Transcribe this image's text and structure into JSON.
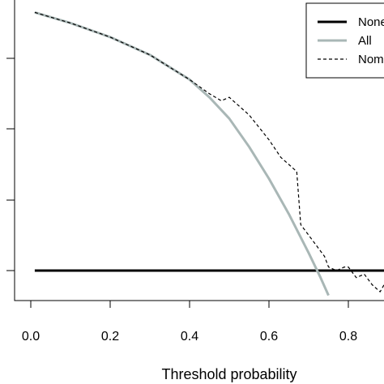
{
  "chart_data": {
    "type": "line",
    "xlabel": "Threshold probability",
    "ylabel": "",
    "x_ticks": [
      "0.0",
      "0.2",
      "0.4",
      "0.6",
      "0.8"
    ],
    "xlim": [
      0.0,
      0.89
    ],
    "ylim": [
      -0.07,
      0.74
    ],
    "grid": false,
    "legend_position": "top-right",
    "series": [
      {
        "name": "None",
        "color": "#000000",
        "style": "solid",
        "x": [
          0.01,
          0.89
        ],
        "y": [
          0.0,
          0.0
        ]
      },
      {
        "name": "All",
        "color": "#a9b7b6",
        "style": "solid",
        "x": [
          0.01,
          0.1,
          0.2,
          0.3,
          0.4,
          0.45,
          0.5,
          0.55,
          0.6,
          0.65,
          0.7,
          0.73,
          0.75
        ],
        "y": [
          0.73,
          0.7,
          0.66,
          0.61,
          0.54,
          0.49,
          0.43,
          0.35,
          0.26,
          0.16,
          0.05,
          -0.02,
          -0.07
        ]
      },
      {
        "name": "Nomogram",
        "color": "#000000",
        "style": "dashed",
        "x": [
          0.01,
          0.1,
          0.2,
          0.3,
          0.4,
          0.45,
          0.48,
          0.5,
          0.55,
          0.6,
          0.63,
          0.65,
          0.67,
          0.68,
          0.7,
          0.72,
          0.74,
          0.75,
          0.77,
          0.79,
          0.8,
          0.82,
          0.84,
          0.86,
          0.88,
          0.89
        ],
        "y": [
          0.73,
          0.7,
          0.66,
          0.61,
          0.54,
          0.5,
          0.48,
          0.49,
          0.44,
          0.37,
          0.32,
          0.3,
          0.28,
          0.13,
          0.1,
          0.07,
          0.04,
          0.01,
          0.0,
          0.01,
          0.01,
          -0.02,
          -0.01,
          -0.04,
          -0.06,
          -0.04
        ]
      }
    ],
    "legend": [
      "None",
      "All",
      "Nomogram"
    ]
  }
}
